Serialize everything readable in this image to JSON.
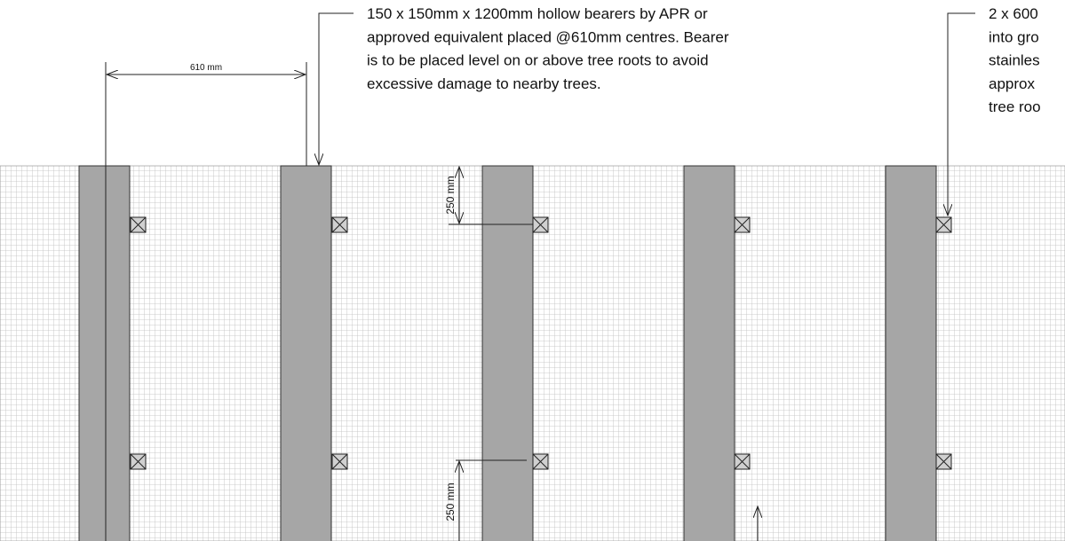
{
  "dimension_spacing": "610 mm",
  "annotations": [
    {
      "lines": [
        "150 x 150mm x 1200mm hollow bearers by APR or",
        "approved equivalent placed @610mm centres. Bearer",
        "is to be placed level on or above tree roots to avoid",
        "excessive damage to nearby trees."
      ]
    },
    {
      "lines": [
        "2 x 600",
        "into gro",
        "stainles",
        "approx",
        "tree roo"
      ]
    }
  ],
  "dimension_top": "250 mm",
  "dimension_bottom": "250 mm"
}
